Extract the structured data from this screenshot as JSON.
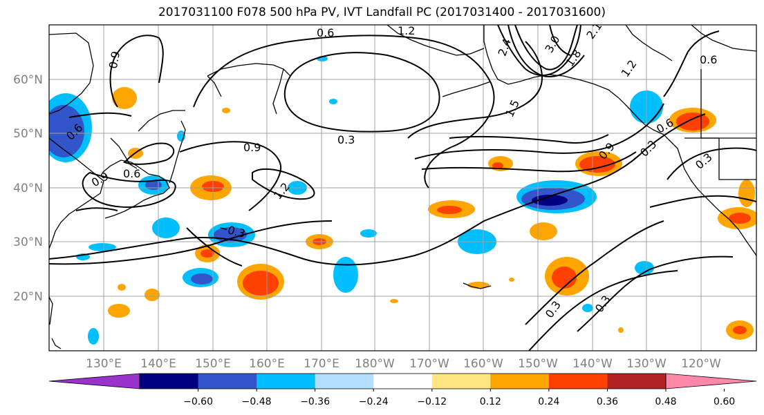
{
  "title": "2017031100 F078 500 hPa PV, IVT Landfall PC (2017031400 - 2017031600)",
  "map": {
    "lon_ticks": [
      "130°E",
      "140°E",
      "150°E",
      "160°E",
      "170°E",
      "180°W",
      "170°W",
      "160°W",
      "150°W",
      "140°W",
      "130°W",
      "120°W"
    ],
    "lat_ticks": [
      "60°N",
      "50°N",
      "40°N",
      "30°N",
      "20°N"
    ]
  },
  "colorbar": {
    "colors": [
      "#9933cc",
      "#000080",
      "#3355cc",
      "#00bfff",
      "#b3e0ff",
      "#ffffff",
      "#ffe680",
      "#ffa500",
      "#ff4000",
      "#b22222",
      "#ff88aa"
    ],
    "labels": [
      "−0.60",
      "−0.48",
      "−0.36",
      "−0.24",
      "−0.12",
      "0.12",
      "0.24",
      "0.36",
      "0.48",
      "0.60"
    ]
  },
  "contour_labels": [
    "0.6",
    "1.2",
    "2.4",
    "3.0",
    "1.8",
    "2.1",
    "0.9",
    "0.6",
    "1.5",
    "1.2",
    "0.3",
    "0.9",
    "0.6",
    "0.9",
    "1.2",
    "0.6",
    "−0.3",
    "0.9",
    "0.3",
    "0.3",
    "0.3",
    "0.3",
    "0.6"
  ]
}
